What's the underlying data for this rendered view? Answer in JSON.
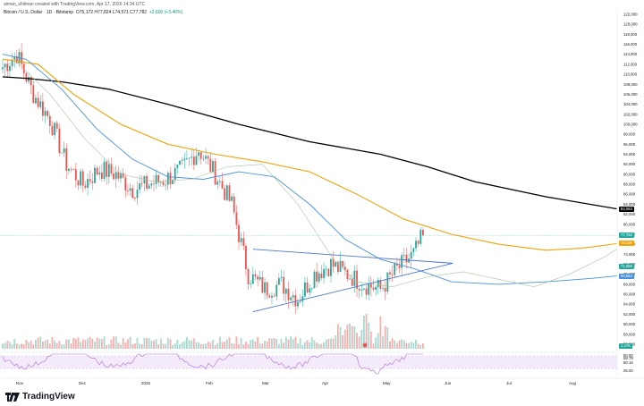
{
  "header": {
    "author_line": "aiman_shilman created with TradingView.com, Apr 17, 2026 14:34 UTC",
    "symbol": "Bitcoin / U.S. Dollar · 1D · Bitstamp",
    "ohlc": "O75,172 H77,824 L74,571 C77,782",
    "change": "+2,600 (+3.46%)"
  },
  "brand": {
    "name": "TradingView"
  },
  "colors": {
    "up": "#26a69a",
    "down": "#ef5350",
    "ma200": "#000000",
    "ma100": "#f0a30a",
    "ma50": "#4a90d9",
    "ma20": "#a5c4a0",
    "triangle": "#4a78c7",
    "rsi": "#b36cd8"
  },
  "price_axis": {
    "labels": [
      "122,000",
      "120,000",
      "118,000",
      "116,000",
      "114,000",
      "112,000",
      "110,000",
      "108,000",
      "106,000",
      "104,000",
      "102,000",
      "100,000",
      "98,000",
      "96,000",
      "94,000",
      "92,000",
      "90,000",
      "88,000",
      "86,000",
      "84,000",
      "82,000",
      "80,000",
      "78,000",
      "76,000",
      "74,000",
      "72,000",
      "70,000",
      "68,000",
      "66,000",
      "64,000",
      "62,000",
      "60,000",
      "58,000",
      "56,000"
    ]
  },
  "price_tags": [
    {
      "text": "83,083",
      "color": "#000000",
      "price": 83083
    },
    {
      "text": "77,782",
      "color": "#26a69a",
      "price": 77782
    },
    {
      "text": "76,116",
      "color": "#f0a30a",
      "price": 76116
    },
    {
      "text": "71,556",
      "color": "#26a69a",
      "price": 71556
    },
    {
      "text": "69,663",
      "color": "#4a90d9",
      "price": 69663
    },
    {
      "text": "1.37K",
      "color": "#26a69a",
      "price": 55600
    }
  ],
  "time_axis": [
    "Nov",
    "Dec",
    "2026",
    "Feb",
    "Mar",
    "Apr",
    "May",
    "Jun",
    "Jul",
    "Aug"
  ],
  "rsi": {
    "labels": [
      "80.00",
      "58.79",
      "50.16",
      "25.00"
    ]
  },
  "chart_data": {
    "type": "candlestick",
    "title": "Bitcoin / U.S. Dollar · 1D · Bitstamp",
    "ylim": [
      54000,
      123000
    ],
    "series": [
      {
        "name": "Price (approx. close)",
        "values": [
          {
            "date": "Oct 27",
            "close": 114000
          },
          {
            "date": "Nov 3",
            "close": 106000
          },
          {
            "date": "Nov 10",
            "close": 101000
          },
          {
            "date": "Nov 17",
            "close": 92000
          },
          {
            "date": "Nov 24",
            "close": 88000
          },
          {
            "date": "Dec 1",
            "close": 91000
          },
          {
            "date": "Dec 8",
            "close": 90000
          },
          {
            "date": "Dec 15",
            "close": 87000
          },
          {
            "date": "Dec 22",
            "close": 88000
          },
          {
            "date": "Dec 29",
            "close": 89000
          },
          {
            "date": "Jan 5",
            "close": 91000
          },
          {
            "date": "Jan 12",
            "close": 95000
          },
          {
            "date": "Jan 19",
            "close": 90000
          },
          {
            "date": "Jan 26",
            "close": 84000
          },
          {
            "date": "Feb 2",
            "close": 70000
          },
          {
            "date": "Feb 9",
            "close": 67000
          },
          {
            "date": "Feb 16",
            "close": 68000
          },
          {
            "date": "Feb 23",
            "close": 65000
          },
          {
            "date": "Mar 2",
            "close": 70000
          },
          {
            "date": "Mar 9",
            "close": 72000
          },
          {
            "date": "Mar 16",
            "close": 70000
          },
          {
            "date": "Mar 23",
            "close": 68000
          },
          {
            "date": "Mar 30",
            "close": 67000
          },
          {
            "date": "Apr 6",
            "close": 71000
          },
          {
            "date": "Apr 13",
            "close": 74000
          },
          {
            "date": "Apr 17",
            "close": 77782
          }
        ]
      },
      {
        "name": "MA200",
        "last": 83083
      },
      {
        "name": "MA100",
        "last": 76116
      },
      {
        "name": "MA50",
        "last": 69663
      }
    ]
  }
}
